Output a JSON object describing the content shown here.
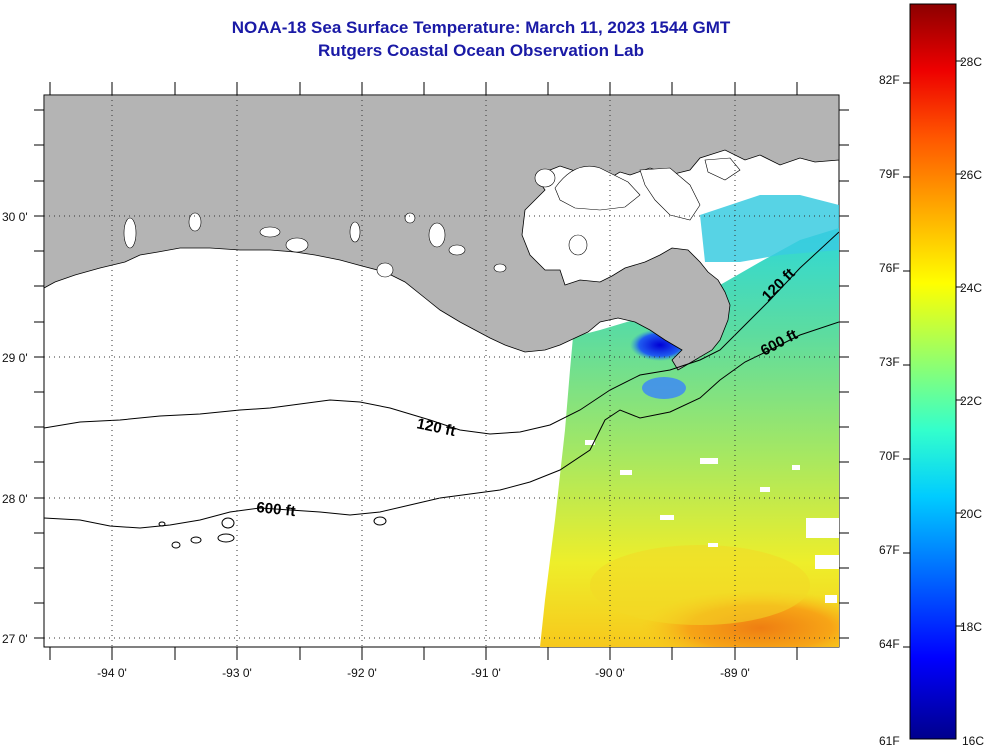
{
  "title": {
    "line1": "NOAA-18 Sea Surface Temperature:  March 11, 2023 1544 GMT",
    "line2": "Rutgers Coastal Ocean Observation Lab"
  },
  "axes": {
    "x_labels": [
      "-94 0'",
      "-93 0'",
      "-92 0'",
      "-91 0'",
      "-90 0'",
      "-89 0'"
    ],
    "y_labels": [
      "30 0'",
      "29 0'",
      "28 0'",
      "27 0'"
    ]
  },
  "contour_labels": {
    "c120_west": "120 ft",
    "c600_west": "600 ft",
    "c120_east": "120 ft",
    "c600_east": "600 ft"
  },
  "colorbar": {
    "f_labels": [
      "82F",
      "79F",
      "76F",
      "73F",
      "70F",
      "67F",
      "64F",
      "61F"
    ],
    "c_labels": [
      "28C",
      "26C",
      "24C",
      "22C",
      "20C",
      "18C",
      "16C"
    ]
  },
  "colors": {
    "title": "#1a1aa6",
    "land": "#b4b4b4",
    "ocean_no_data": "#ffffff"
  }
}
